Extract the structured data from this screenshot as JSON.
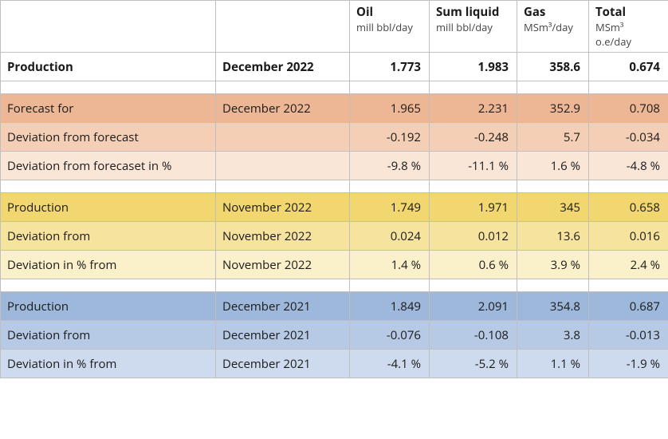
{
  "border_color": "#bfbfbf",
  "columns": [
    {
      "label": "",
      "unit": ""
    },
    {
      "label": "",
      "unit": ""
    },
    {
      "label": "Oil",
      "unit": "mill bbl/day"
    },
    {
      "label": "Sum liquid",
      "unit": "mill bbl/day"
    },
    {
      "label": "Gas",
      "unit": "MSm³/day"
    },
    {
      "label": "Total",
      "unit": "MSm³ o.e/day"
    }
  ],
  "sections": [
    {
      "bold": true,
      "bg_levels": [
        "#ffffff",
        "#ffffff",
        "#ffffff"
      ],
      "rows": [
        {
          "label": "Production",
          "period": "December 2022",
          "oil": "1.773",
          "sum": "1.983",
          "gas": "358.6",
          "total": "0.674"
        }
      ]
    },
    {
      "bold": false,
      "bg_levels": [
        "#edb795",
        "#f4cfb6",
        "#f9e6d7"
      ],
      "rows": [
        {
          "label": "Forecast for",
          "period": "December 2022",
          "oil": "1.965",
          "sum": "2.231",
          "gas": "352.9",
          "total": "0.708"
        },
        {
          "label": "Deviation from forecast",
          "period": "",
          "oil": "-0.192",
          "sum": "-0.248",
          "gas": "5.7",
          "total": "-0.034"
        },
        {
          "label": "Deviation from forecaset in %",
          "period": "",
          "oil": "-9.8 %",
          "sum": "-11.1 %",
          "gas": "1.6 %",
          "total": "-4.8 %"
        }
      ]
    },
    {
      "bold": false,
      "bg_levels": [
        "#f2d66f",
        "#f6e39d",
        "#faf0ca"
      ],
      "rows": [
        {
          "label": "Production",
          "period": "November 2022",
          "oil": "1.749",
          "sum": "1.971",
          "gas": "345",
          "total": "0.658"
        },
        {
          "label": "Deviation from",
          "period": "November 2022",
          "oil": "0.024",
          "sum": "0.012",
          "gas": "13.6",
          "total": "0.016"
        },
        {
          "label": "Deviation in % from",
          "period": "November 2022",
          "oil": "1.4 %",
          "sum": "0.6 %",
          "gas": "3.9 %",
          "total": "2.4 %"
        }
      ]
    },
    {
      "bold": false,
      "bg_levels": [
        "#9db8db",
        "#b6c9e5",
        "#cedbee"
      ],
      "rows": [
        {
          "label": "Production",
          "period": "December 2021",
          "oil": "1.849",
          "sum": "2.091",
          "gas": "354.8",
          "total": "0.687"
        },
        {
          "label": "Deviation from",
          "period": "December 2021",
          "oil": "-0.076",
          "sum": "-0.108",
          "gas": "3.8",
          "total": "-0.013"
        },
        {
          "label": "Deviation in % from",
          "period": "December 2021",
          "oil": "-4.1 %",
          "sum": "-5.2 %",
          "gas": "1.1 %",
          "total": "-1.9 %"
        }
      ]
    }
  ]
}
